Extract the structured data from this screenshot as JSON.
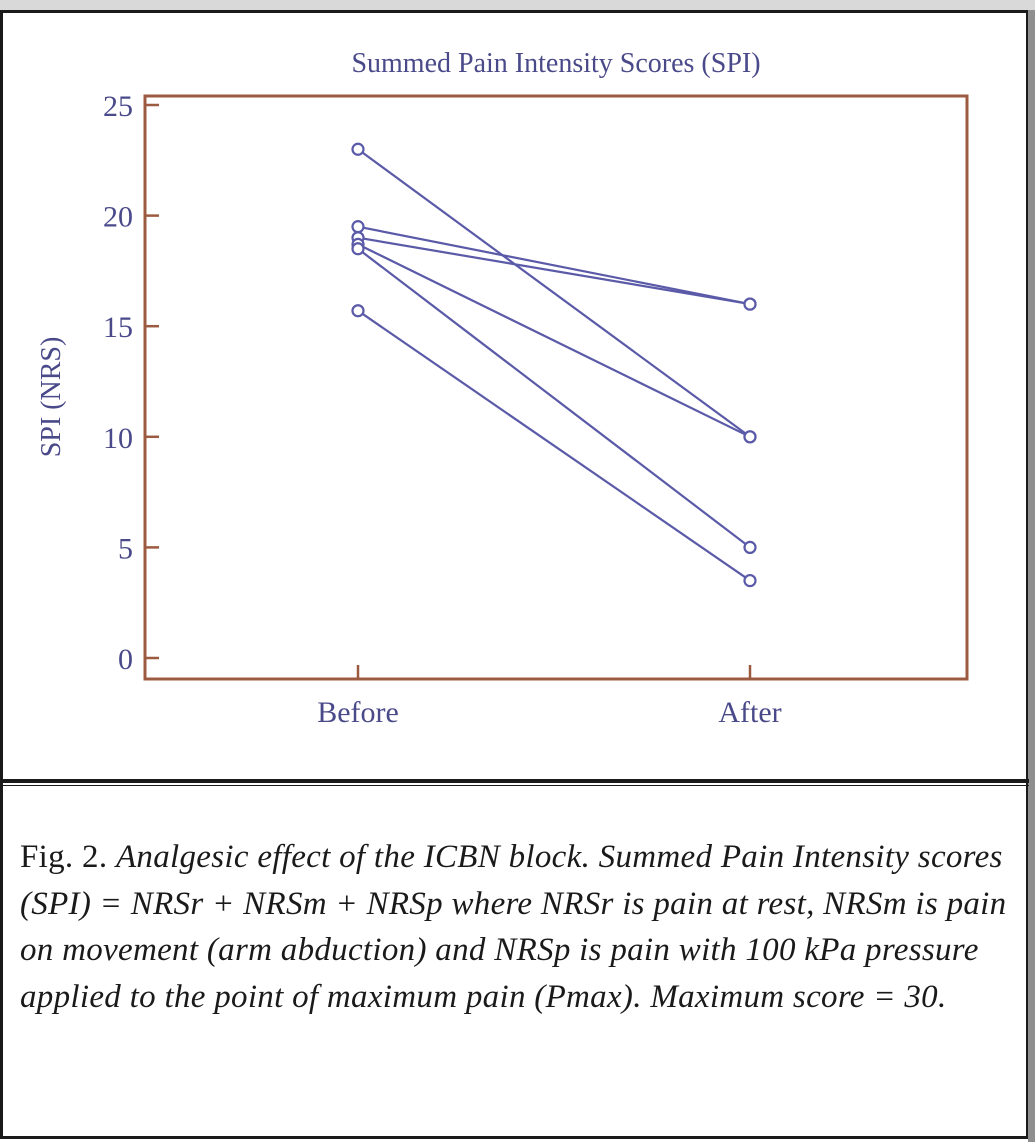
{
  "chart_data": {
    "type": "line",
    "title": "Summed Pain Intensity Scores (SPI)",
    "xlabel": "",
    "ylabel": "SPI (NRS)",
    "categories": [
      "Before",
      "After"
    ],
    "ylim": [
      0,
      25
    ],
    "yticks": [
      "0",
      "5",
      "10",
      "15",
      "20",
      "25"
    ],
    "grid": false,
    "legend": "none",
    "series": [
      {
        "values": [
          23,
          10
        ]
      },
      {
        "values": [
          19.5,
          16
        ]
      },
      {
        "values": [
          19,
          16
        ]
      },
      {
        "values": [
          18.7,
          10
        ]
      },
      {
        "values": [
          18.5,
          5
        ]
      },
      {
        "values": [
          15.7,
          3.5
        ]
      }
    ],
    "colors": {
      "line": "#5a5aa8",
      "axes": "#9c5a40",
      "text": "#4a4a8a"
    }
  },
  "caption": {
    "label": "Fig. 2.",
    "text": "Analgesic effect of the ICBN block. Summed Pain Intensity scores (SPI) = NRSr + NRSm + NRSp where NRSr is pain at rest, NRSm is pain on movement (arm abduction) and NRSp is pain with 100 kPa pressure applied to the point of maximum pain (Pmax). Maximum score = 30."
  }
}
